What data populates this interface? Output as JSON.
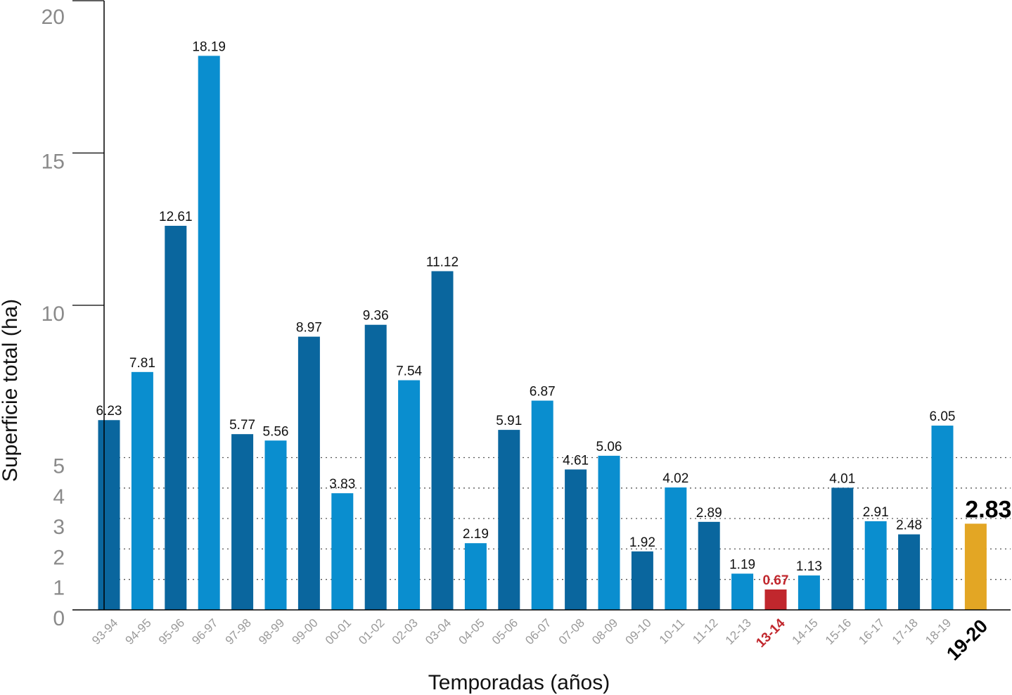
{
  "chart_data": {
    "type": "bar",
    "title": "",
    "xlabel": "Temporadas (años)",
    "ylabel": "Superficie total (ha)",
    "ylim": [
      0,
      20
    ],
    "y_scale": "linear",
    "yticks": [
      0,
      1,
      2,
      3,
      4,
      5,
      10,
      15,
      20
    ],
    "ytick_labels": [
      "0",
      "1",
      "2",
      "3",
      "4",
      "5",
      "10",
      "15",
      "20"
    ],
    "reference_lines": [
      1,
      2,
      3,
      4,
      5
    ],
    "reference_line_style": "dotted",
    "grid": false,
    "legend": "none",
    "categories": [
      "93-94",
      "94-95",
      "95-96",
      "96-97",
      "97-98",
      "98-99",
      "99-00",
      "00-01",
      "01-02",
      "02-03",
      "03-04",
      "04-05",
      "05-06",
      "06-07",
      "07-08",
      "08-09",
      "09-10",
      "10-11",
      "11-12",
      "12-13",
      "13-14",
      "14-15",
      "15-16",
      "16-17",
      "17-18",
      "18-19",
      "19-20"
    ],
    "values": [
      6.23,
      7.81,
      12.61,
      18.19,
      5.77,
      5.56,
      8.97,
      3.83,
      9.36,
      7.54,
      11.12,
      2.19,
      5.91,
      6.87,
      4.61,
      5.06,
      1.92,
      4.02,
      2.89,
      1.19,
      0.67,
      1.13,
      4.01,
      2.91,
      2.48,
      6.05,
      2.83
    ],
    "value_labels": [
      "6.23",
      "7.81",
      "12.61",
      "18.19",
      "5.77",
      "5.56",
      "8.97",
      "3.83",
      "9.36",
      "7.54",
      "11.12",
      "2.19",
      "5.91",
      "6.87",
      "4.61",
      "5.06",
      "1.92",
      "4.02",
      "2.89",
      "1.19",
      "0.67",
      "1.13",
      "4.01",
      "2.91",
      "2.48",
      "6.05",
      "2.83"
    ],
    "bar_colors": [
      "#0a669e",
      "#0a8ecf",
      "#0a669e",
      "#0a8ecf",
      "#0a669e",
      "#0a8ecf",
      "#0a669e",
      "#0a8ecf",
      "#0a669e",
      "#0a8ecf",
      "#0a669e",
      "#0a8ecf",
      "#0a669e",
      "#0a8ecf",
      "#0a669e",
      "#0a8ecf",
      "#0a669e",
      "#0a8ecf",
      "#0a669e",
      "#0a8ecf",
      "#c1272d",
      "#0a8ecf",
      "#0a669e",
      "#0a8ecf",
      "#0a669e",
      "#0a8ecf",
      "#e3a624"
    ],
    "highlights": {
      "minimum_category": "13-14",
      "minimum_color": "#c1272d",
      "current_category": "19-20",
      "current_color": "#e3a624"
    },
    "colors": {
      "dark_blue": "#0a669e",
      "light_blue": "#0a8ecf",
      "axis": "#000000",
      "tick_label": "#8a8a8a"
    }
  }
}
